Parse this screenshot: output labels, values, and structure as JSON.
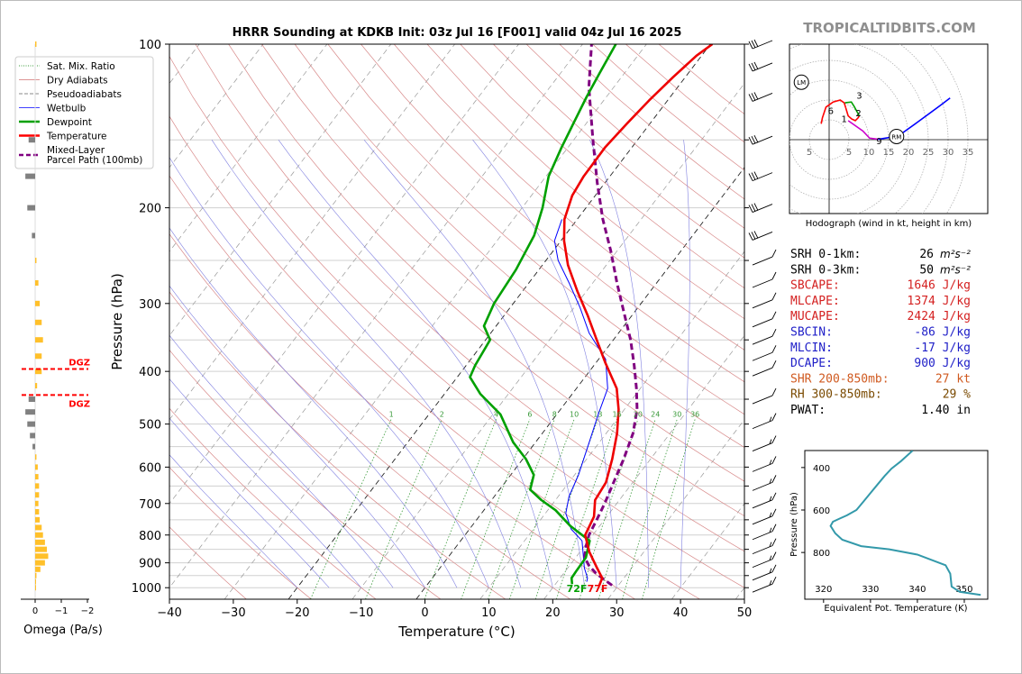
{
  "site": {
    "watermark": "TROPICALTIDBITS.COM"
  },
  "chart_data": [
    {
      "type": "line",
      "name_key": "skewt",
      "title": "HRRR Sounding at KDKB Init: 03z Jul 16 [F001] valid 04z Jul 16 2025",
      "xlabel": "Temperature (°C)",
      "ylabel": "Pressure (hPa)",
      "xlim": [
        -40,
        50
      ],
      "ylim": [
        1050,
        100
      ],
      "y_scale": "log",
      "x_ticks": [
        "−40",
        "−30",
        "−20",
        "−10",
        "0",
        "10",
        "20",
        "30",
        "40",
        "50"
      ],
      "x_tick_values": [
        -40,
        -30,
        -20,
        -10,
        0,
        10,
        20,
        30,
        40,
        50
      ],
      "y_ticks": [
        "100",
        "200",
        "300",
        "400",
        "500",
        "600",
        "700",
        "800",
        "900",
        "1000"
      ],
      "y_tick_values": [
        100,
        200,
        300,
        400,
        500,
        600,
        700,
        800,
        900,
        1000
      ],
      "mixing_ratio_labels": [
        "1",
        "2",
        "4",
        "6",
        "8",
        "10",
        "13",
        "16",
        "20",
        "24",
        "30",
        "36"
      ],
      "mixing_ratio_values": [
        1,
        2,
        4,
        6,
        8,
        10,
        13,
        16,
        20,
        24,
        30,
        36
      ],
      "legend": [
        {
          "label": "Sat. Mix. Ratio",
          "color": "#3a9a3a",
          "style": "dotted"
        },
        {
          "label": "Dry Adiabats",
          "color": "#d07070",
          "style": "solid-thin"
        },
        {
          "label": "Pseudoadiabats",
          "color": "#888888",
          "style": "dashed"
        },
        {
          "label": "Wetbulb",
          "color": "#0000ff",
          "style": "solid-thin"
        },
        {
          "label": "Dewpoint",
          "color": "#00a000",
          "style": "solid"
        },
        {
          "label": "Temperature",
          "color": "#ff0000",
          "style": "solid"
        },
        {
          "label": "Mixed-Layer\nParcel Path (100mb)",
          "color": "#800080",
          "style": "dashed-thick"
        }
      ],
      "series": [
        {
          "name": "Temperature",
          "color": "#ee0000",
          "points": [
            [
              27,
              990
            ],
            [
              26.6,
              960
            ],
            [
              24.6,
              920
            ],
            [
              21.5,
              860
            ],
            [
              18.8,
              800
            ],
            [
              18,
              740
            ],
            [
              16.2,
              690
            ],
            [
              15.8,
              640
            ],
            [
              14,
              580
            ],
            [
              11.7,
              520
            ],
            [
              9.1,
              470
            ],
            [
              6.3,
              430
            ],
            [
              1.4,
              385
            ],
            [
              -2.6,
              350
            ],
            [
              -7,
              315
            ],
            [
              -11.4,
              285
            ],
            [
              -16,
              255
            ],
            [
              -19.5,
              230
            ],
            [
              -22,
              210
            ],
            [
              -23.6,
              190
            ],
            [
              -24.1,
              175
            ],
            [
              -24.2,
              155
            ],
            [
              -23.6,
              140
            ],
            [
              -22.9,
              127
            ],
            [
              -21.9,
              115
            ],
            [
              -20.8,
              105
            ],
            [
              -19.7,
              100
            ]
          ]
        },
        {
          "name": "Dewpoint",
          "color": "#00a000",
          "points": [
            [
              22.6,
              985
            ],
            [
              21.8,
              960
            ],
            [
              21.7,
              930
            ],
            [
              21.6,
              880
            ],
            [
              20.2,
              820
            ],
            [
              15.4,
              770
            ],
            [
              11.2,
              720
            ],
            [
              7.8,
              690
            ],
            [
              4.8,
              660
            ],
            [
              3.6,
              620
            ],
            [
              0.5,
              580
            ],
            [
              -3.5,
              540
            ],
            [
              -8.8,
              480
            ],
            [
              -14.4,
              440
            ],
            [
              -18,
              410
            ],
            [
              -18.6,
              390
            ],
            [
              -19.3,
              350
            ],
            [
              -21.9,
              330
            ],
            [
              -23,
              300
            ],
            [
              -23.6,
              260
            ],
            [
              -24.8,
              225
            ],
            [
              -26.8,
              200
            ],
            [
              -29.6,
              175
            ],
            [
              -31,
              155
            ],
            [
              -32,
              140
            ],
            [
              -33.1,
              125
            ],
            [
              -33.9,
              113
            ],
            [
              -34.8,
              100
            ]
          ]
        },
        {
          "name": "Wetbulb",
          "color": "#0000ff",
          "points": [
            [
              24.6,
              975
            ],
            [
              24.3,
              960
            ],
            [
              22.6,
              920
            ],
            [
              20.5,
              860
            ],
            [
              19,
              820
            ],
            [
              15.9,
              780
            ],
            [
              13.2,
              730
            ],
            [
              11.7,
              680
            ],
            [
              10.6,
              620
            ],
            [
              8.4,
              540
            ],
            [
              6.5,
              480
            ],
            [
              4.9,
              430
            ],
            [
              1.1,
              380
            ],
            [
              -4.6,
              340
            ],
            [
              -9.1,
              305
            ],
            [
              -13.7,
              275
            ],
            [
              -18.1,
              250
            ],
            [
              -21,
              230
            ],
            [
              -22.4,
              210
            ]
          ]
        },
        {
          "name": "Parcel Path",
          "color": "#800080",
          "points": [
            [
              29,
              990
            ],
            [
              27,
              965
            ],
            [
              25,
              940
            ],
            [
              23,
              910
            ],
            [
              21.4,
              880
            ],
            [
              20.3,
              840
            ],
            [
              19.4,
              800
            ],
            [
              18.8,
              750
            ],
            [
              18.1,
              700
            ],
            [
              17,
              640
            ],
            [
              15.8,
              580
            ],
            [
              14.2,
              520
            ],
            [
              12,
              470
            ],
            [
              9.4,
              430
            ],
            [
              6.3,
              390
            ],
            [
              2.7,
              350
            ],
            [
              -1.8,
              310
            ],
            [
              -6.2,
              275
            ],
            [
              -11,
              240
            ],
            [
              -16,
              210
            ],
            [
              -21.2,
              180
            ],
            [
              -27,
              150
            ],
            [
              -33.9,
              120
            ],
            [
              -38.6,
              100
            ]
          ]
        }
      ],
      "wind_barb_pressures": [
        100,
        110,
        125,
        150,
        175,
        200,
        225,
        250,
        275,
        300,
        325,
        350,
        375,
        400,
        450,
        500,
        550,
        600,
        650,
        700,
        750,
        800,
        850,
        900,
        950,
        1000
      ],
      "dgz_levels": [
        396,
        442
      ],
      "surface_labels": {
        "dewpoint": "72F",
        "temperature": "77F"
      }
    },
    {
      "type": "bar",
      "name_key": "omega",
      "xlabel": "Omega (Pa/s)",
      "x_ticks": [
        "0",
        "−1",
        "−2"
      ],
      "x_tick_values": [
        0,
        -1,
        -2
      ],
      "dgz_label": "DGZ",
      "bars": [
        [
          100,
          0.02
        ],
        [
          150,
          -0.1
        ],
        [
          175,
          -0.15
        ],
        [
          200,
          -0.12
        ],
        [
          225,
          -0.05
        ],
        [
          250,
          0.02
        ],
        [
          275,
          0.05
        ],
        [
          300,
          0.07
        ],
        [
          325,
          0.1
        ],
        [
          350,
          0.12
        ],
        [
          375,
          0.1
        ],
        [
          400,
          0.1
        ],
        [
          425,
          0.03
        ],
        [
          450,
          -0.1
        ],
        [
          475,
          -0.15
        ],
        [
          500,
          -0.12
        ],
        [
          525,
          -0.08
        ],
        [
          550,
          -0.04
        ],
        [
          575,
          0.02
        ],
        [
          600,
          0.04
        ],
        [
          625,
          0.05
        ],
        [
          650,
          0.06
        ],
        [
          675,
          0.06
        ],
        [
          700,
          0.05
        ],
        [
          725,
          0.06
        ],
        [
          750,
          0.07
        ],
        [
          775,
          0.1
        ],
        [
          800,
          0.12
        ],
        [
          825,
          0.15
        ],
        [
          850,
          0.18
        ],
        [
          875,
          0.2
        ],
        [
          900,
          0.15
        ],
        [
          925,
          0.08
        ],
        [
          950,
          0.02
        ],
        [
          975,
          0.01
        ],
        [
          1000,
          0
        ]
      ]
    },
    {
      "type": "line",
      "name_key": "hodograph",
      "xlabel": "Hodograph (wind in kt, height in km)",
      "rings": [
        5,
        10,
        15,
        20,
        25,
        30,
        35
      ],
      "ring_labels": [
        "5",
        "5",
        "10",
        "15",
        "20",
        "25",
        "30",
        "35"
      ],
      "ring_label_values": [
        -5,
        5,
        10,
        15,
        20,
        25,
        30,
        35
      ],
      "lm_label": "LM",
      "rm_label": "RM",
      "height_labels": [
        "1",
        "2",
        "3",
        "6",
        "9"
      ],
      "segments": [
        {
          "name": "0-3km",
          "color": "#ff0000",
          "points": [
            [
              -2,
              4
            ],
            [
              -1.7,
              5.5
            ],
            [
              -0.8,
              8.2
            ],
            [
              1,
              9.5
            ],
            [
              2.8,
              10
            ],
            [
              3.8,
              9.3
            ],
            [
              4.2,
              8
            ]
          ]
        },
        {
          "name": "1-2km",
          "color": "#ff0000",
          "points": [
            [
              4.2,
              8
            ],
            [
              4.8,
              6
            ],
            [
              5.7,
              5.2
            ],
            [
              6.6,
              4.8
            ],
            [
              7.3,
              5.5
            ],
            [
              7.6,
              6
            ]
          ]
        },
        {
          "name": "3-6km",
          "color": "#00a000",
          "points": [
            [
              7.6,
              6
            ],
            [
              6.3,
              8.4
            ],
            [
              5.6,
              9.5
            ],
            [
              4,
              9.3
            ]
          ]
        },
        {
          "name": "6-9km",
          "color": "#cc00cc",
          "points": [
            [
              4.8,
              4.8
            ],
            [
              8.5,
              2.2
            ],
            [
              10.2,
              0.4
            ],
            [
              12.4,
              0.1
            ]
          ]
        },
        {
          "name": "upper",
          "color": "#0000ff",
          "points": [
            [
              12.4,
              0.1
            ],
            [
              17.4,
              0.9
            ],
            [
              22,
              4.2
            ],
            [
              28,
              8.6
            ],
            [
              30.5,
              10.5
            ]
          ]
        }
      ],
      "point_labels": [
        {
          "text": "1",
          "u": 3.8,
          "v": 5.3
        },
        {
          "text": "2",
          "u": 7.4,
          "v": 6.8
        },
        {
          "text": "3",
          "u": 7.6,
          "v": 11.2
        },
        {
          "text": "6",
          "u": 0.4,
          "v": 7.4
        },
        {
          "text": "9",
          "u": 12.6,
          "v": -0.2
        }
      ],
      "lm_point": [
        -7,
        14.5
      ],
      "rm_point": [
        17,
        0.8
      ]
    },
    {
      "type": "line",
      "name_key": "thetae",
      "xlabel": "Equivalent Pot. Temperature (K)",
      "ylabel": "Pressure (hPa)",
      "xlim": [
        316,
        355
      ],
      "ylim": [
        1020,
        320
      ],
      "x_ticks": [
        "320",
        "330",
        "340",
        "350"
      ],
      "x_tick_values": [
        320,
        330,
        340,
        350
      ],
      "y_ticks": [
        "400",
        "600",
        "800"
      ],
      "y_tick_values": [
        400,
        600,
        800
      ],
      "points": [
        [
          353.5,
          1000
        ],
        [
          349,
          985
        ],
        [
          347.3,
          960
        ],
        [
          347,
          900
        ],
        [
          346,
          860
        ],
        [
          340,
          810
        ],
        [
          334,
          785
        ],
        [
          328,
          770
        ],
        [
          324,
          740
        ],
        [
          322.5,
          710
        ],
        [
          321.5,
          675
        ],
        [
          322,
          655
        ],
        [
          323.5,
          640
        ],
        [
          325,
          625
        ],
        [
          327,
          600
        ],
        [
          328.5,
          560
        ],
        [
          330,
          520
        ],
        [
          331.5,
          480
        ],
        [
          333,
          440
        ],
        [
          334.5,
          405
        ],
        [
          336.5,
          370
        ],
        [
          338,
          340
        ],
        [
          339,
          320
        ]
      ]
    }
  ],
  "indices": {
    "srh1": {
      "label": "SRH 0-1km:",
      "value": "26"
    },
    "srh3": {
      "label": "SRH 0-3km:",
      "value": "50"
    },
    "srh_unit": "m²s⁻²",
    "sbcape": {
      "label": "SBCAPE:",
      "value": "1646 J/kg"
    },
    "mlcape": {
      "label": "MLCAPE:",
      "value": "1374 J/kg"
    },
    "mucape": {
      "label": "MUCAPE:",
      "value": "2424 J/kg"
    },
    "sbcin": {
      "label": "SBCIN:",
      "value": "-86 J/kg"
    },
    "mlcin": {
      "label": "MLCIN:",
      "value": "-17 J/kg"
    },
    "dcape": {
      "label": "DCAPE:",
      "value": "900 J/kg"
    },
    "shr": {
      "label": "SHR 200-850mb:",
      "value": "27 kt"
    },
    "rh": {
      "label": "RH 300-850mb:",
      "value": "29 %"
    },
    "pwat": {
      "label": "PWAT:",
      "value": "1.40 in"
    },
    "colors": {
      "srh": "#000000",
      "cape": "#d42020",
      "cin": "#2020c8",
      "shr": "#d05a20",
      "rh": "#7a4a00",
      "pwat": "#000000"
    }
  }
}
